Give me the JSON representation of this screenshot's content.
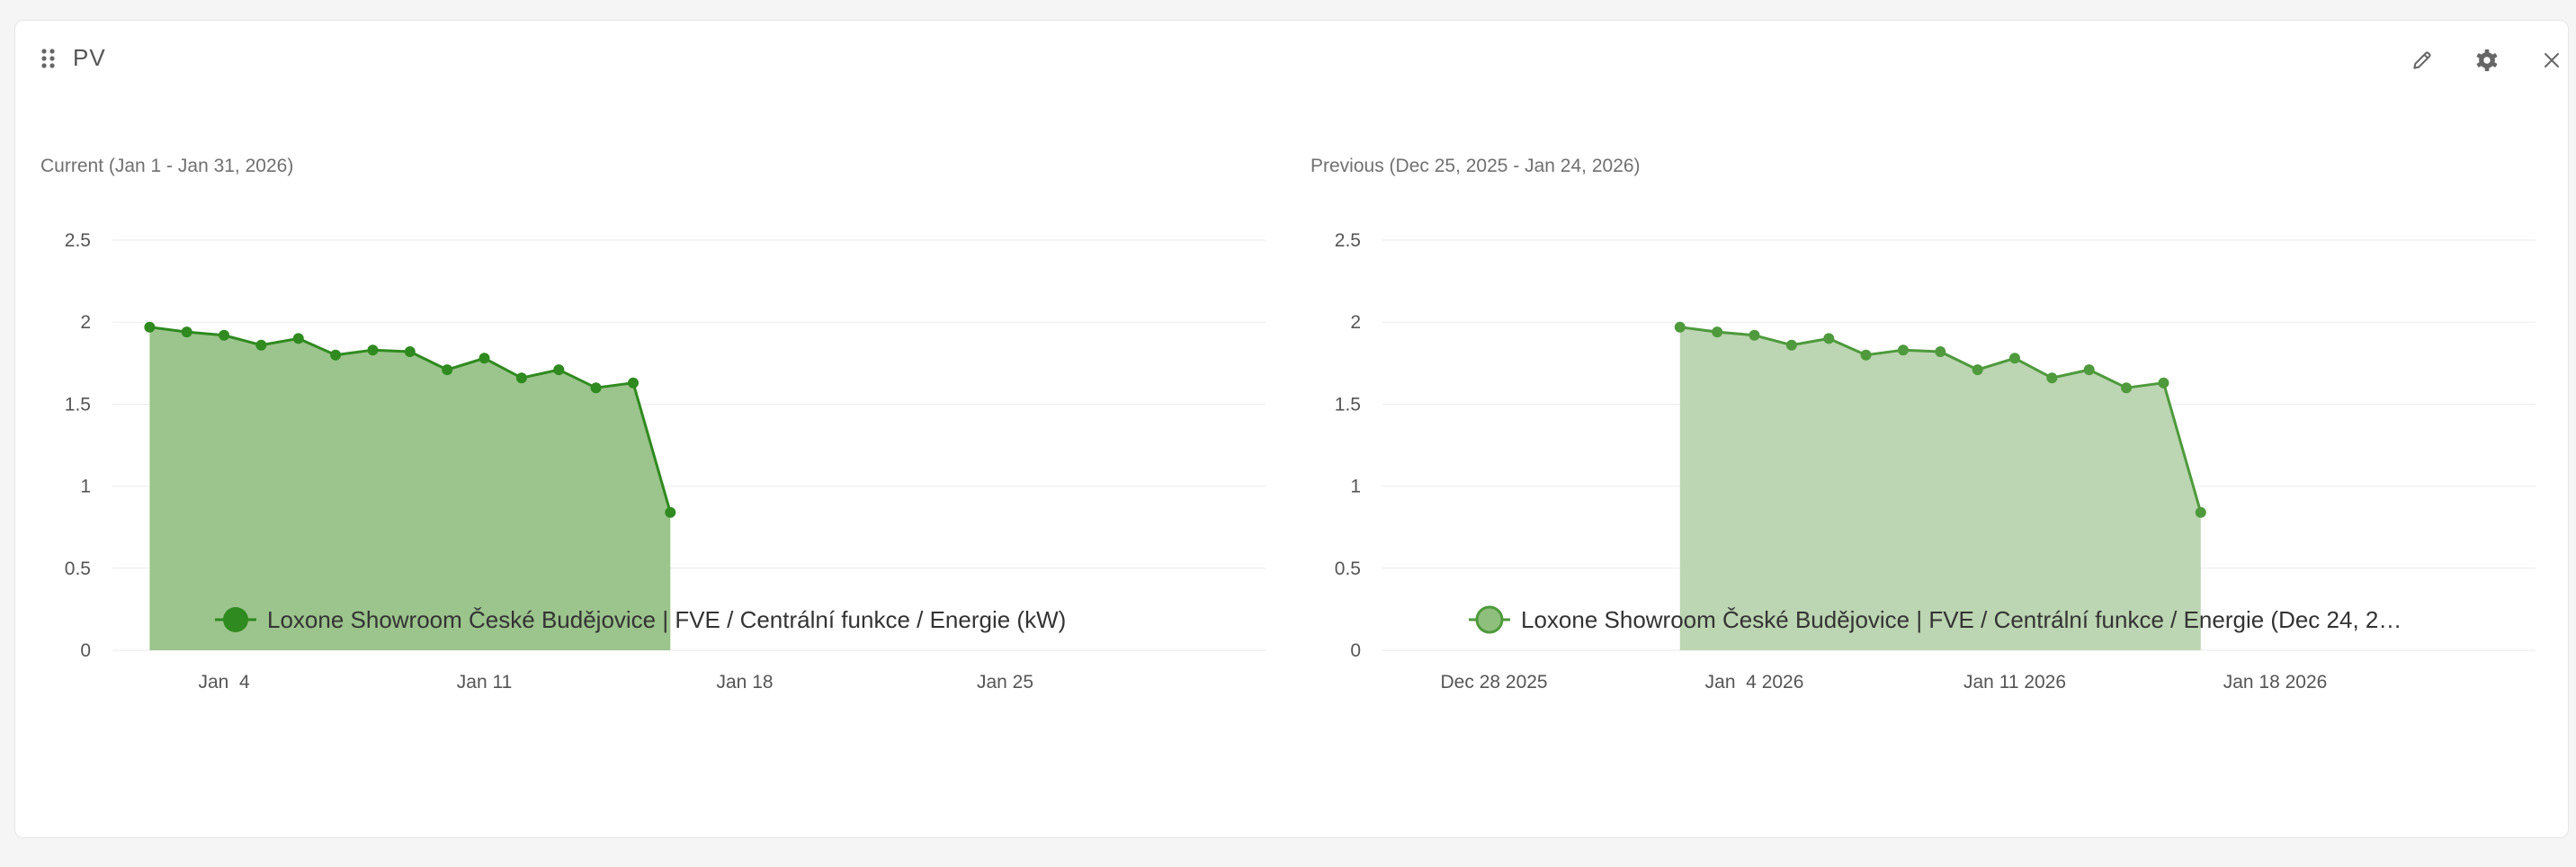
{
  "widget": {
    "title": "PV",
    "icons": {
      "drag": "drag-handle-icon",
      "edit": "pencil-icon",
      "settings": "gear-icon",
      "close": "close-icon"
    }
  },
  "colors": {
    "current_line": "#2f8a1f",
    "current_fill": "#9cc48d",
    "previous_line": "#4e9a3c",
    "previous_fill": "#bcd5b2",
    "grid": "#ebebeb"
  },
  "chart_data": [
    {
      "type": "area",
      "period_label": "Current (Jan 1 - Jan 31, 2026)",
      "legend_label": "Loxone Showroom České Budějovice | FVE / Centrální funkce / Energie (kW)",
      "x_domain": [
        "2026-01-01",
        "2026-01-31"
      ],
      "ylim": [
        0,
        2.5
      ],
      "y_ticks": [
        0,
        0.5,
        1,
        1.5,
        2,
        2.5
      ],
      "y_tick_labels": [
        "0",
        "0.5",
        "1",
        "1.5",
        "2",
        "2.5"
      ],
      "x_ticks": [
        {
          "date": "2026-01-04",
          "label": "Jan  4"
        },
        {
          "date": "2026-01-11",
          "label": "Jan 11"
        },
        {
          "date": "2026-01-18",
          "label": "Jan 18"
        },
        {
          "date": "2026-01-25",
          "label": "Jan 25"
        }
      ],
      "grid": true,
      "legend_position": "bottom",
      "series": [
        {
          "x": [
            "2026-01-02",
            "2026-01-03",
            "2026-01-04",
            "2026-01-05",
            "2026-01-06",
            "2026-01-07",
            "2026-01-08",
            "2026-01-09",
            "2026-01-10",
            "2026-01-11",
            "2026-01-12",
            "2026-01-13",
            "2026-01-14",
            "2026-01-15",
            "2026-01-16"
          ],
          "y": [
            1.97,
            1.94,
            1.92,
            1.86,
            1.9,
            1.8,
            1.83,
            1.82,
            1.71,
            1.78,
            1.66,
            1.71,
            1.6,
            1.63,
            0.84
          ]
        }
      ]
    },
    {
      "type": "area",
      "period_label": "Previous (Dec 25, 2025 - Jan 24, 2026)",
      "legend_label": "Loxone Showroom České Budějovice | FVE / Centrální funkce / Energie (Dec 24, 2…",
      "x_domain": [
        "2025-12-25",
        "2026-01-24"
      ],
      "ylim": [
        0,
        2.5
      ],
      "y_ticks": [
        0,
        0.5,
        1,
        1.5,
        2,
        2.5
      ],
      "y_tick_labels": [
        "0",
        "0.5",
        "1",
        "1.5",
        "2",
        "2.5"
      ],
      "x_ticks": [
        {
          "date": "2025-12-28",
          "label": "Dec 28 2025"
        },
        {
          "date": "2026-01-04",
          "label": "Jan  4 2026"
        },
        {
          "date": "2026-01-11",
          "label": "Jan 11 2026"
        },
        {
          "date": "2026-01-18",
          "label": "Jan 18 2026"
        }
      ],
      "grid": true,
      "legend_position": "bottom",
      "series": [
        {
          "x": [
            "2026-01-02",
            "2026-01-03",
            "2026-01-04",
            "2026-01-05",
            "2026-01-06",
            "2026-01-07",
            "2026-01-08",
            "2026-01-09",
            "2026-01-10",
            "2026-01-11",
            "2026-01-12",
            "2026-01-13",
            "2026-01-14",
            "2026-01-15",
            "2026-01-16"
          ],
          "y": [
            1.97,
            1.94,
            1.92,
            1.86,
            1.9,
            1.8,
            1.83,
            1.82,
            1.71,
            1.78,
            1.66,
            1.71,
            1.6,
            1.63,
            0.84
          ]
        }
      ]
    }
  ]
}
